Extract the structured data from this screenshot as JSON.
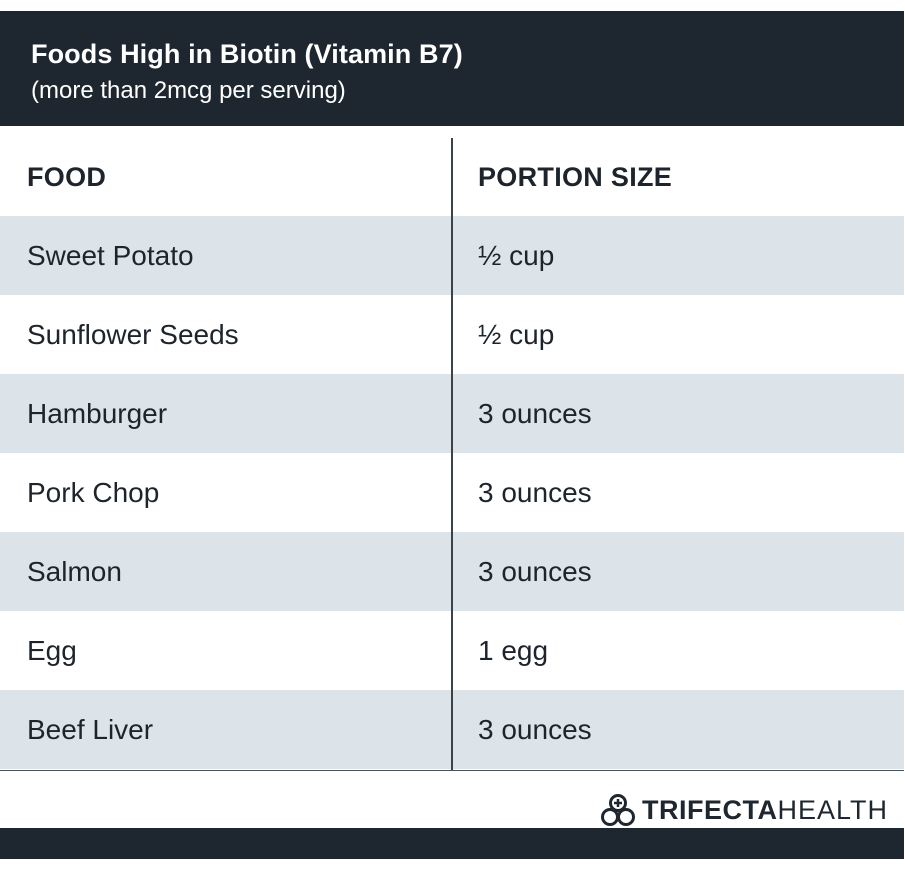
{
  "header": {
    "title": "Foods High in Biotin (Vitamin B7)",
    "subtitle": "(more than 2mcg per serving)"
  },
  "table": {
    "columns": [
      "FOOD",
      "PORTION SIZE"
    ],
    "rows": [
      {
        "food": "Sweet Potato",
        "portion": "½ cup"
      },
      {
        "food": "Sunflower Seeds",
        "portion": "½ cup"
      },
      {
        "food": "Hamburger",
        "portion": "3 ounces"
      },
      {
        "food": "Pork Chop",
        "portion": "3 ounces"
      },
      {
        "food": "Salmon",
        "portion": "3 ounces"
      },
      {
        "food": "Egg",
        "portion": "1 egg"
      },
      {
        "food": "Beef Liver",
        "portion": "3 ounces"
      }
    ]
  },
  "brand": {
    "icon": "trifecta-logo-icon",
    "name_bold": "TRIFECTA",
    "name_light": "HEALTH"
  },
  "colors": {
    "header_bg": "#1e2730",
    "row_shade": "#dce3e9",
    "text": "#1d242c"
  }
}
